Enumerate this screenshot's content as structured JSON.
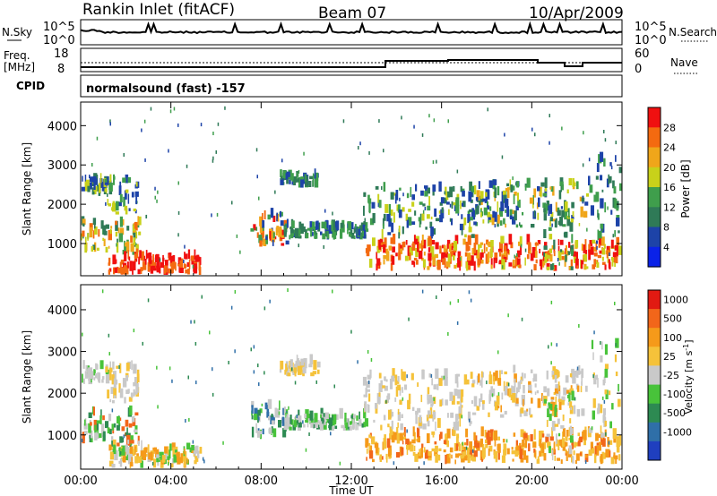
{
  "header": {
    "station": "Rankin Inlet (fitACF)",
    "beam": "Beam 07",
    "date": "10/Apr/2009"
  },
  "nsky_panel": {
    "left_label": "N.Sky",
    "left_ticks": [
      "10^5",
      "10^0"
    ],
    "right_ticks": [
      "10^5",
      "10^0"
    ],
    "right_label": "N.Search"
  },
  "freq_panel": {
    "left_label_1": "Freq.",
    "left_label_2": "[MHz]",
    "left_ticks": [
      "18",
      "8"
    ],
    "right_ticks": [
      "60",
      "0"
    ],
    "right_label": "Nave"
  },
  "cpid_panel": {
    "label": "CPID",
    "text": "normalsound (fast) -157"
  },
  "chart_data": [
    {
      "type": "heatmap",
      "ylabel": "Slant Range [km]",
      "yticks": [
        "1000",
        "2000",
        "3000",
        "4000"
      ],
      "xticks": [
        "00:00",
        "04:00",
        "08:00",
        "12:00",
        "16:00",
        "20:00",
        "00:00"
      ],
      "colorbar": {
        "label": "Power [dB]",
        "ticks": [
          "4",
          "8",
          "12",
          "16",
          "20",
          "24",
          "28"
        ],
        "colors": [
          "#0a22e8",
          "#1d43a8",
          "#2f7a57",
          "#3f9e4c",
          "#c8d11a",
          "#f0a61a",
          "#f46a10",
          "#f01010"
        ]
      }
    },
    {
      "type": "heatmap",
      "ylabel": "Slant Range [km]",
      "yticks": [
        "1000",
        "2000",
        "3000",
        "4000"
      ],
      "xticks": [
        "00:00",
        "04:00",
        "08:00",
        "12:00",
        "16:00",
        "20:00",
        "00:00"
      ],
      "xlabel": "Time UT",
      "colorbar": {
        "label": "Velocity [m s",
        "label_sup": "-1",
        "label_end": "]",
        "ticks": [
          "1000",
          "500",
          "100",
          "25",
          "-25",
          "-100",
          "-500",
          "-1000"
        ],
        "colors": [
          "#1f3fbf",
          "#2f6fa8",
          "#2d8a52",
          "#48c33a",
          "#c9c9c9",
          "#f5c23a",
          "#f59a1a",
          "#f2661a",
          "#e11a12"
        ]
      }
    }
  ]
}
